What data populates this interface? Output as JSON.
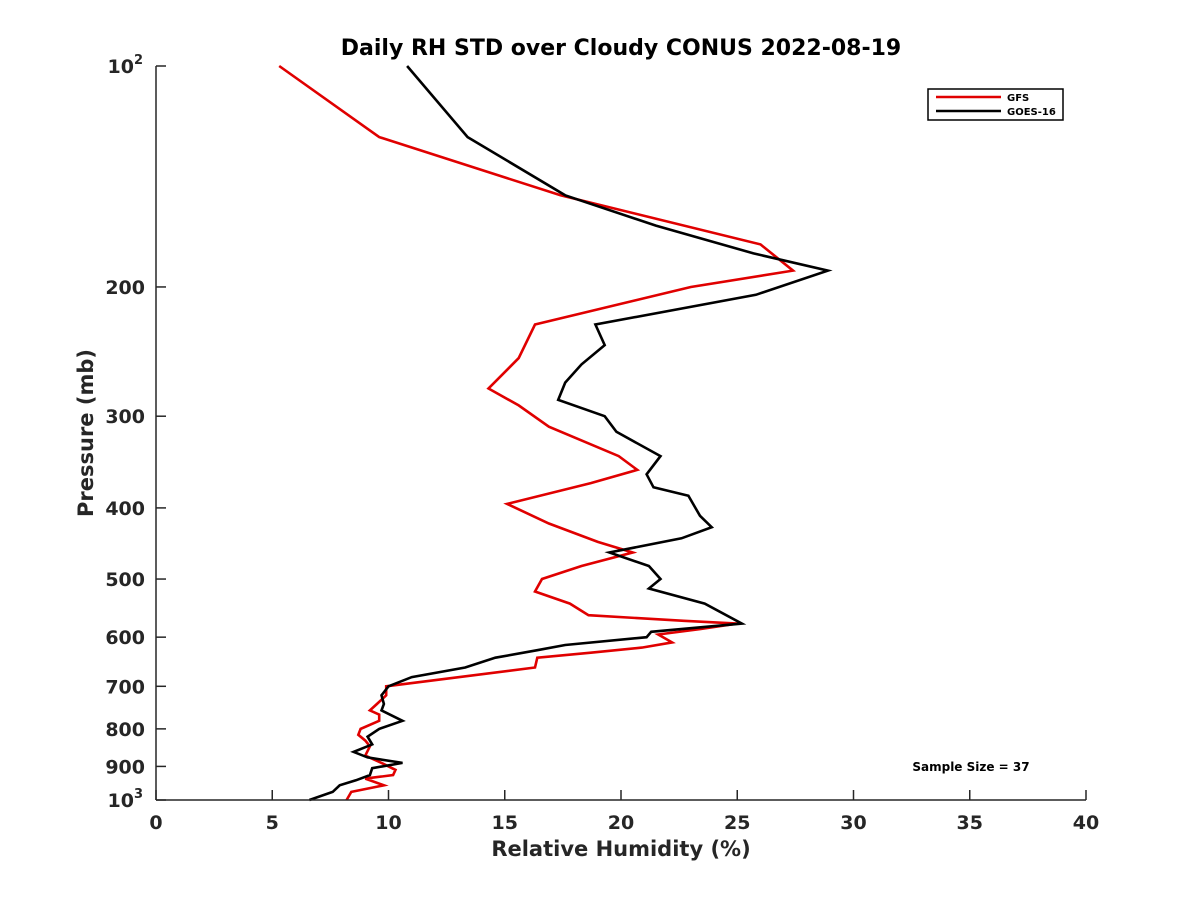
{
  "chart_data": {
    "type": "line",
    "title": "Daily RH STD over Cloudy CONUS 2022-08-19",
    "xlabel": "Relative Humidity (%)",
    "ylabel": "Pressure (mb)",
    "xlim": [
      0,
      40
    ],
    "ylim": [
      100,
      1000
    ],
    "yscale": "log",
    "y_reversed": true,
    "x_ticks": [
      {
        "value": 0,
        "label": "0"
      },
      {
        "value": 5,
        "label": "5"
      },
      {
        "value": 10,
        "label": "10"
      },
      {
        "value": 15,
        "label": "15"
      },
      {
        "value": 20,
        "label": "20"
      },
      {
        "value": 25,
        "label": "25"
      },
      {
        "value": 30,
        "label": "30"
      },
      {
        "value": 35,
        "label": "35"
      },
      {
        "value": 40,
        "label": "40"
      }
    ],
    "y_ticks": [
      {
        "value": 100,
        "label": "10",
        "sup": "2"
      },
      {
        "value": 200,
        "label": "200"
      },
      {
        "value": 300,
        "label": "300"
      },
      {
        "value": 400,
        "label": "400"
      },
      {
        "value": 500,
        "label": "500"
      },
      {
        "value": 600,
        "label": "600"
      },
      {
        "value": 700,
        "label": "700"
      },
      {
        "value": 800,
        "label": "800"
      },
      {
        "value": 900,
        "label": "900"
      },
      {
        "value": 1000,
        "label": "10",
        "sup": "3"
      }
    ],
    "legend_position": "top-right",
    "annotation": "Sample Size = 37",
    "series": [
      {
        "name": "GFS",
        "color": "#e00000",
        "points": [
          [
            5.3,
            100
          ],
          [
            9.6,
            125
          ],
          [
            17.4,
            150
          ],
          [
            26.0,
            175
          ],
          [
            27.4,
            190
          ],
          [
            23.0,
            200
          ],
          [
            16.3,
            225
          ],
          [
            15.6,
            250
          ],
          [
            14.3,
            275
          ],
          [
            15.6,
            290
          ],
          [
            16.9,
            310
          ],
          [
            19.9,
            340
          ],
          [
            20.7,
            355
          ],
          [
            18.7,
            370
          ],
          [
            15.1,
            395
          ],
          [
            16.9,
            420
          ],
          [
            19.0,
            445
          ],
          [
            20.5,
            460
          ],
          [
            18.3,
            480
          ],
          [
            16.6,
            500
          ],
          [
            16.3,
            520
          ],
          [
            17.8,
            540
          ],
          [
            18.6,
            560
          ],
          [
            22.7,
            570
          ],
          [
            25.0,
            575
          ],
          [
            23.4,
            585
          ],
          [
            21.6,
            595
          ],
          [
            22.2,
            610
          ],
          [
            20.9,
            620
          ],
          [
            18.7,
            630
          ],
          [
            16.4,
            640
          ],
          [
            16.3,
            660
          ],
          [
            9.9,
            700
          ],
          [
            9.9,
            720
          ],
          [
            9.5,
            740
          ],
          [
            9.2,
            755
          ],
          [
            9.6,
            765
          ],
          [
            9.6,
            780
          ],
          [
            8.8,
            800
          ],
          [
            8.7,
            815
          ],
          [
            9.0,
            830
          ],
          [
            9.2,
            845
          ],
          [
            9.0,
            870
          ],
          [
            9.7,
            890
          ],
          [
            10.3,
            910
          ],
          [
            10.2,
            925
          ],
          [
            9.0,
            935
          ],
          [
            9.8,
            955
          ],
          [
            8.4,
            975
          ],
          [
            8.2,
            1000
          ]
        ]
      },
      {
        "name": "GOES-16",
        "color": "#000000",
        "points": [
          [
            10.8,
            100
          ],
          [
            13.4,
            125
          ],
          [
            17.6,
            150
          ],
          [
            21.5,
            165
          ],
          [
            25.7,
            180
          ],
          [
            28.9,
            190
          ],
          [
            25.8,
            205
          ],
          [
            18.9,
            225
          ],
          [
            19.3,
            240
          ],
          [
            18.3,
            255
          ],
          [
            17.6,
            270
          ],
          [
            17.3,
            285
          ],
          [
            19.3,
            300
          ],
          [
            19.8,
            315
          ],
          [
            21.7,
            340
          ],
          [
            21.1,
            360
          ],
          [
            21.4,
            375
          ],
          [
            22.9,
            385
          ],
          [
            23.2,
            400
          ],
          [
            23.4,
            410
          ],
          [
            23.9,
            425
          ],
          [
            22.6,
            440
          ],
          [
            19.5,
            460
          ],
          [
            21.2,
            480
          ],
          [
            21.7,
            500
          ],
          [
            21.2,
            515
          ],
          [
            23.6,
            540
          ],
          [
            25.2,
            575
          ],
          [
            21.3,
            590
          ],
          [
            21.1,
            600
          ],
          [
            17.6,
            615
          ],
          [
            16.4,
            625
          ],
          [
            14.6,
            640
          ],
          [
            13.3,
            660
          ],
          [
            11.0,
            680
          ],
          [
            10.0,
            700
          ],
          [
            9.7,
            720
          ],
          [
            9.8,
            740
          ],
          [
            9.7,
            755
          ],
          [
            10.6,
            780
          ],
          [
            9.6,
            800
          ],
          [
            9.1,
            820
          ],
          [
            9.3,
            840
          ],
          [
            8.5,
            860
          ],
          [
            9.1,
            875
          ],
          [
            10.6,
            890
          ],
          [
            9.3,
            905
          ],
          [
            9.2,
            925
          ],
          [
            8.6,
            940
          ],
          [
            7.9,
            955
          ],
          [
            7.6,
            975
          ],
          [
            6.6,
            1000
          ]
        ]
      }
    ]
  }
}
